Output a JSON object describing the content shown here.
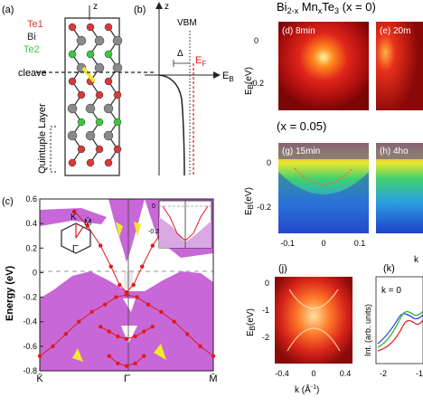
{
  "panels": {
    "a": {
      "label": "(a)",
      "axis": "z",
      "legend": [
        {
          "text": "Te1",
          "color": "#d83a3a"
        },
        {
          "text": "Bi",
          "color": "#222222"
        },
        {
          "text": "Te2",
          "color": "#3cc93c"
        }
      ],
      "cleave_label": "cleave",
      "layer_label": "Quintuple Layer"
    },
    "b": {
      "label": "(b)",
      "axis": "z",
      "vbm_label": "VBM",
      "delta_label": "Δ",
      "ef_label": "E",
      "ef_sub": "F",
      "eb_label": "E",
      "eb_sub": "B"
    },
    "c": {
      "label": "(c)",
      "ylabel": "Energy (eV)",
      "yticks": [
        "0.6",
        "0.4",
        "0.2",
        "0",
        "-0.2",
        "-0.4",
        "-0.6",
        "-0.8"
      ],
      "xticks": [
        "K̄",
        "Γ̄",
        "M̄"
      ],
      "bz_labels": {
        "k": "K̄",
        "m": "M̄",
        "g": "Γ̄"
      },
      "inset_ticks": [
        "0",
        "-0.2"
      ]
    },
    "title": {
      "prefix": "Bi",
      "sub1": "2-x",
      "mid": " Mn",
      "sub2": "x",
      "suffix": "Te",
      "sub3": "3",
      "cond": " (x = 0)"
    },
    "d": {
      "label": "(d) 8min",
      "ylabel": "E",
      "ysub": "B",
      "yunit": "(eV)",
      "yticks": [
        "0",
        "-0.2"
      ]
    },
    "e": {
      "label": "(e) 20m"
    },
    "cond2": "(x = 0.05)",
    "g": {
      "label": "(g) 15min",
      "ylabel": "E",
      "ysub": "B",
      "yunit": "(eV)",
      "yticks": [
        "0",
        "-0.2"
      ],
      "xticks": [
        "-0.1",
        "0",
        "0.1"
      ]
    },
    "h": {
      "label": "(h) 4ho",
      "xlabel": "k"
    },
    "j": {
      "label": "(j)",
      "ylabel": "E",
      "ysub": "B",
      "yunit": "(eV)",
      "yticks": [
        "0",
        "-1",
        "-2"
      ],
      "xticks": [
        "-0.4",
        "0",
        "0.4"
      ],
      "xlabel": "k (Å",
      "xsup": "-1",
      "xclose": ")"
    },
    "k": {
      "label": "(k)",
      "inner": "k = 0",
      "ylabel": "Int. (arb. units)",
      "xticks": [
        "-2",
        "-1"
      ]
    }
  },
  "colors": {
    "magenta": "#c867d8",
    "yellow": "#f0ea2a",
    "dispersion": "#e01a1a",
    "te1": "#d83a3a",
    "te2": "#3cc93c"
  },
  "chart_data": {
    "type": "line",
    "xticks": [
      "K̄",
      "Γ̄",
      "M̄"
    ],
    "ylabel": "Energy (eV)",
    "ylim": [
      -0.8,
      0.6
    ],
    "series": [
      {
        "values": [
          {
            "x": -1.0,
            "y": -0.68
          },
          {
            "x": -0.85,
            "y": -0.6
          },
          {
            "x": -0.7,
            "y": -0.5
          },
          {
            "x": -0.55,
            "y": -0.4
          },
          {
            "x": -0.4,
            "y": -0.32
          },
          {
            "x": -0.25,
            "y": -0.26
          },
          {
            "x": -0.12,
            "y": -0.2
          },
          {
            "x": 0.0,
            "y": -0.18
          },
          {
            "x": 0.12,
            "y": -0.2
          },
          {
            "x": 0.25,
            "y": -0.26
          },
          {
            "x": 0.4,
            "y": -0.32
          },
          {
            "x": 0.55,
            "y": -0.4
          },
          {
            "x": 0.7,
            "y": -0.5
          },
          {
            "x": 0.85,
            "y": -0.6
          },
          {
            "x": 1.0,
            "y": -0.68
          }
        ]
      },
      {
        "values": [
          {
            "x": -0.6,
            "y": 0.5
          },
          {
            "x": -0.45,
            "y": 0.38
          },
          {
            "x": -0.3,
            "y": 0.22
          },
          {
            "x": -0.18,
            "y": 0.05
          },
          {
            "x": -0.08,
            "y": -0.1
          },
          {
            "x": 0.0,
            "y": -0.16
          },
          {
            "x": 0.08,
            "y": -0.1
          },
          {
            "x": 0.18,
            "y": 0.05
          },
          {
            "x": 0.3,
            "y": 0.22
          },
          {
            "x": 0.45,
            "y": 0.38
          },
          {
            "x": 0.6,
            "y": 0.5
          }
        ]
      },
      {
        "values": [
          {
            "x": -0.3,
            "y": -0.44
          },
          {
            "x": -0.2,
            "y": -0.48
          },
          {
            "x": -0.1,
            "y": -0.52
          },
          {
            "x": 0.0,
            "y": -0.54
          },
          {
            "x": 0.1,
            "y": -0.52
          },
          {
            "x": 0.2,
            "y": -0.48
          },
          {
            "x": 0.3,
            "y": -0.44
          }
        ]
      },
      {
        "values": [
          {
            "x": -0.2,
            "y": -0.68
          },
          {
            "x": -0.1,
            "y": -0.74
          },
          {
            "x": 0.0,
            "y": -0.76
          },
          {
            "x": 0.1,
            "y": -0.74
          },
          {
            "x": 0.2,
            "y": -0.68
          }
        ]
      }
    ]
  }
}
